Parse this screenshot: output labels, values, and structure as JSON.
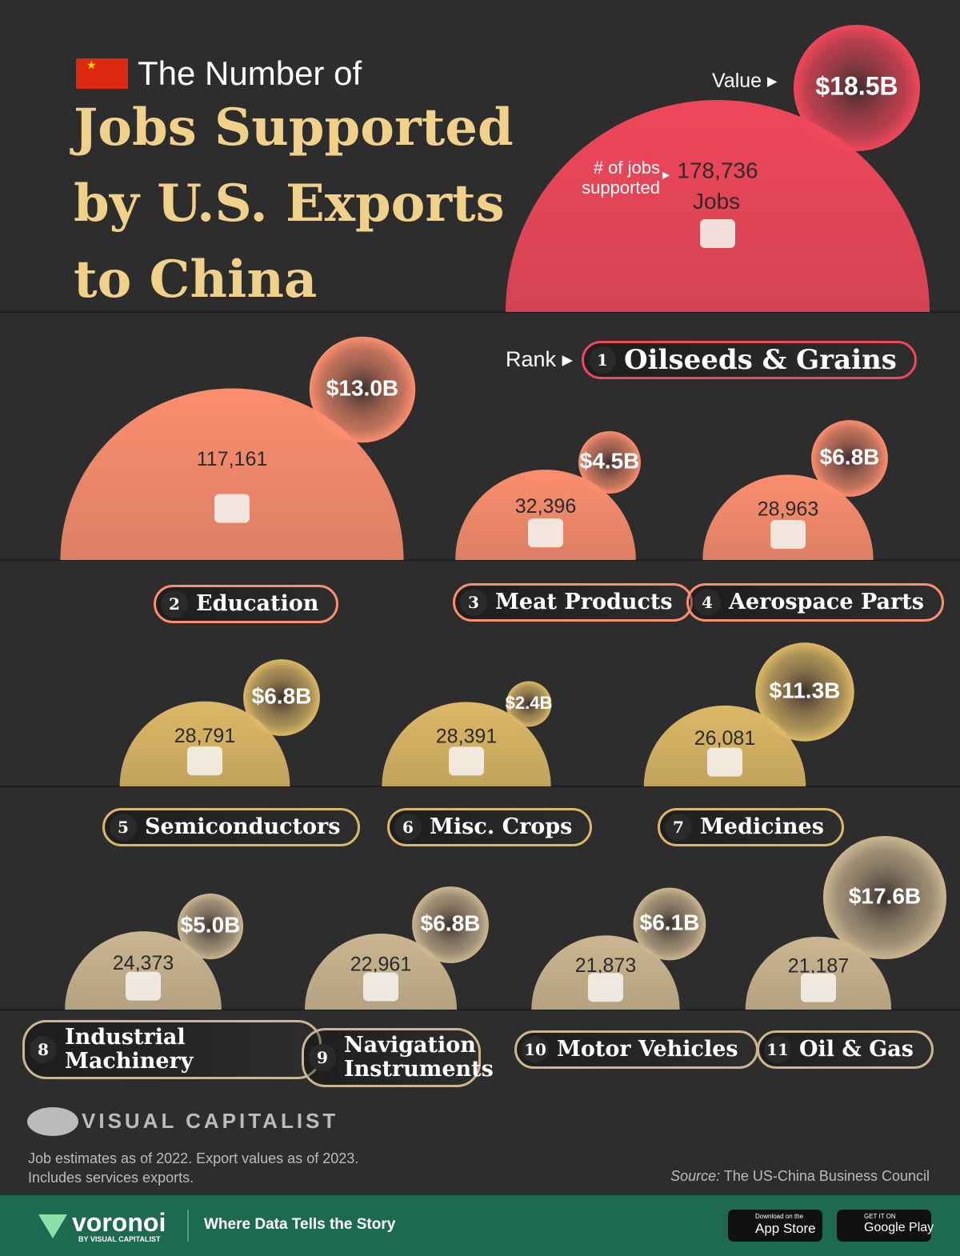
{
  "chart_data": {
    "type": "semicircle",
    "title_prefix": "The Number of",
    "title": "Jobs Supported by U.S. Exports to China",
    "categories": [
      "Oilseeds & Grains",
      "Education",
      "Meat Products",
      "Aerospace Parts",
      "Semiconductors",
      "Misc. Crops",
      "Medicines",
      "Industrial Machinery",
      "Navigation Instruments",
      "Motor Vehicles",
      "Oil & Gas"
    ],
    "ranks": [
      1,
      2,
      3,
      4,
      5,
      6,
      7,
      8,
      9,
      10,
      11
    ],
    "rank_label": "Rank",
    "jobs_unit": "Jobs",
    "colors": [
      "#f0475a",
      "#fb8e6e",
      "#fb8e6e",
      "#fb8e6e",
      "#dcb866",
      "#dcb866",
      "#dcb866",
      "#cbb690",
      "#cbb690",
      "#cbb690",
      "#cbb690"
    ],
    "series": [
      {
        "name": "# of jobs supported",
        "values": [
          178736,
          117161,
          32396,
          28963,
          28791,
          28391,
          26081,
          24373,
          22961,
          21873,
          21187
        ],
        "value_labels": [
          "178,736",
          "117,161",
          "32,396",
          "28,963",
          "28,791",
          "28,391",
          "26,081",
          "24,373",
          "22,961",
          "21,873",
          "21,187"
        ]
      },
      {
        "name": "Value",
        "values": [
          18.5,
          13.0,
          4.5,
          6.8,
          6.8,
          2.4,
          11.3,
          5.0,
          6.8,
          6.1,
          17.6
        ],
        "value_labels": [
          "$18.5B",
          "$13.0B",
          "$4.5B",
          "$6.8B",
          "$6.8B",
          "$2.4B",
          "$11.3B",
          "$5.0B",
          "$6.8B",
          "$6.1B",
          "$17.6B"
        ]
      }
    ]
  },
  "footer": {
    "brand": "VISUAL CAPITALIST",
    "note": "Job estimates as of 2022. Export values as of 2023. Includes services exports.",
    "source_label": "Source:",
    "source": "The US-China Business Council",
    "voronoi": "voronoi",
    "voronoi_sub": "BY VISUAL CAPITALIST",
    "tagline": "Where Data Tells the Story",
    "appstore_small": "Download on the",
    "appstore": "App Store",
    "googleplay_small": "GET IT ON",
    "googleplay": "Google Play"
  }
}
